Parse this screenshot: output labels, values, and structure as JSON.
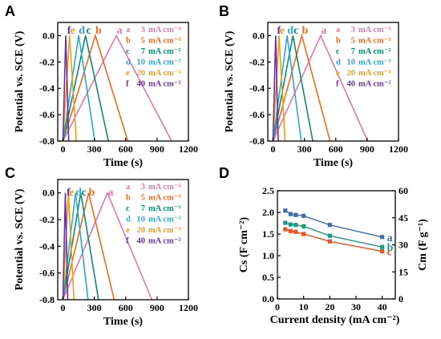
{
  "gcd_curve_letters": [
    "a",
    "b",
    "c",
    "d",
    "e",
    "f"
  ],
  "legend_entries": [
    {
      "letter": "a",
      "value": "3",
      "unit": "mA cm⁻²"
    },
    {
      "letter": "b",
      "value": "5",
      "unit": "mA cm⁻²"
    },
    {
      "letter": "c",
      "value": "7",
      "unit": "mA cm⁻²"
    },
    {
      "letter": "d",
      "value": "10",
      "unit": "mA cm⁻²"
    },
    {
      "letter": "e",
      "value": "20",
      "unit": "mA cm⁻²"
    },
    {
      "letter": "f",
      "value": "40",
      "unit": "mA cm⁻²"
    }
  ],
  "colors": {
    "a": "#e377a8",
    "b": "#f26b1d",
    "c": "#0e8a6e",
    "d": "#2aa7d8",
    "e": "#f39c12",
    "f": "#6a2fa0",
    "series_a": "#3f6ea6",
    "series_b": "#1f9a82",
    "series_c": "#f0511e"
  },
  "chart_data": [
    {
      "panel": "A",
      "type": "line",
      "xlabel": "Time (s)",
      "ylabel": "Potential vs. SCE (V)",
      "xlim": [
        -50,
        1200
      ],
      "ylim": [
        -0.8,
        0.1
      ],
      "xticks": [
        0,
        300,
        600,
        900,
        1200
      ],
      "yticks": [
        -0.8,
        -0.6,
        -0.4,
        -0.2,
        0.0
      ],
      "series": [
        {
          "name": "a",
          "points": [
            [
              0,
              -0.8
            ],
            [
              510,
              0.0
            ],
            [
              1040,
              -0.8
            ]
          ]
        },
        {
          "name": "b",
          "points": [
            [
              0,
              -0.8
            ],
            [
              310,
              0.0
            ],
            [
              620,
              -0.8
            ]
          ]
        },
        {
          "name": "c",
          "points": [
            [
              0,
              -0.8
            ],
            [
              215,
              0.0
            ],
            [
              435,
              -0.8
            ]
          ]
        },
        {
          "name": "d",
          "points": [
            [
              0,
              -0.8
            ],
            [
              150,
              0.0
            ],
            [
              305,
              -0.8
            ]
          ]
        },
        {
          "name": "e",
          "points": [
            [
              0,
              -0.8
            ],
            [
              63,
              0.0
            ],
            [
              128,
              -0.8
            ]
          ]
        },
        {
          "name": "f",
          "points": [
            [
              0,
              -0.8
            ],
            [
              27,
              0.0
            ],
            [
              55,
              -0.8
            ]
          ]
        }
      ]
    },
    {
      "panel": "B",
      "type": "line",
      "xlabel": "Time (s)",
      "ylabel": "Potential vs. SCE (V)",
      "xlim": [
        -50,
        1200
      ],
      "ylim": [
        -0.8,
        0.1
      ],
      "xticks": [
        0,
        300,
        600,
        900,
        1200
      ],
      "yticks": [
        -0.8,
        -0.6,
        -0.4,
        -0.2,
        0.0
      ],
      "series": [
        {
          "name": "a",
          "points": [
            [
              0,
              -0.8
            ],
            [
              455,
              0.0
            ],
            [
              905,
              -0.8
            ]
          ]
        },
        {
          "name": "b",
          "points": [
            [
              0,
              -0.8
            ],
            [
              275,
              0.0
            ],
            [
              545,
              -0.8
            ]
          ]
        },
        {
          "name": "c",
          "points": [
            [
              0,
              -0.8
            ],
            [
              190,
              0.0
            ],
            [
              380,
              -0.8
            ]
          ]
        },
        {
          "name": "d",
          "points": [
            [
              0,
              -0.8
            ],
            [
              135,
              0.0
            ],
            [
              270,
              -0.8
            ]
          ]
        },
        {
          "name": "e",
          "points": [
            [
              0,
              -0.8
            ],
            [
              57,
              0.0
            ],
            [
              115,
              -0.8
            ]
          ]
        },
        {
          "name": "f",
          "points": [
            [
              0,
              -0.8
            ],
            [
              25,
              0.0
            ],
            [
              50,
              -0.8
            ]
          ]
        }
      ]
    },
    {
      "panel": "C",
      "type": "line",
      "xlabel": "Time (s)",
      "ylabel": "Potential vs. SCE (V)",
      "xlim": [
        -50,
        1200
      ],
      "ylim": [
        -0.8,
        0.1
      ],
      "xticks": [
        0,
        300,
        600,
        900,
        1200
      ],
      "yticks": [
        -0.8,
        -0.6,
        -0.4,
        -0.2,
        0.0
      ],
      "series": [
        {
          "name": "a",
          "points": [
            [
              0,
              -0.8
            ],
            [
              425,
              0.0
            ],
            [
              850,
              -0.8
            ]
          ]
        },
        {
          "name": "b",
          "points": [
            [
              0,
              -0.8
            ],
            [
              245,
              0.0
            ],
            [
              490,
              -0.8
            ]
          ]
        },
        {
          "name": "c",
          "points": [
            [
              0,
              -0.8
            ],
            [
              170,
              0.0
            ],
            [
              340,
              -0.8
            ]
          ]
        },
        {
          "name": "d",
          "points": [
            [
              0,
              -0.8
            ],
            [
              120,
              0.0
            ],
            [
              240,
              -0.8
            ]
          ]
        },
        {
          "name": "e",
          "points": [
            [
              0,
              -0.8
            ],
            [
              52,
              0.0
            ],
            [
              105,
              -0.8
            ]
          ]
        },
        {
          "name": "f",
          "points": [
            [
              0,
              -0.8
            ],
            [
              23,
              0.0
            ],
            [
              46,
              -0.8
            ]
          ]
        }
      ]
    },
    {
      "panel": "D",
      "type": "line",
      "xlabel": "Current density (mA cm⁻²)",
      "ylabel": "Cs (F cm⁻²)",
      "y2label": "Cm (F g⁻¹)",
      "xlim": [
        0,
        45
      ],
      "ylim": [
        0.0,
        2.5
      ],
      "y2lim": [
        0,
        60
      ],
      "xticks": [
        0,
        10,
        20,
        30,
        40
      ],
      "yticks": [
        0.0,
        0.5,
        1.0,
        1.5,
        2.0,
        2.5
      ],
      "y2ticks": [
        0,
        15,
        30,
        45,
        60
      ],
      "x": [
        3,
        5,
        7,
        10,
        20,
        40
      ],
      "series": [
        {
          "name": "a",
          "values": [
            2.04,
            1.96,
            1.94,
            1.92,
            1.71,
            1.43
          ]
        },
        {
          "name": "b",
          "values": [
            1.76,
            1.72,
            1.71,
            1.68,
            1.46,
            1.2
          ]
        },
        {
          "name": "c",
          "values": [
            1.61,
            1.57,
            1.55,
            1.5,
            1.33,
            1.1
          ]
        }
      ]
    }
  ]
}
